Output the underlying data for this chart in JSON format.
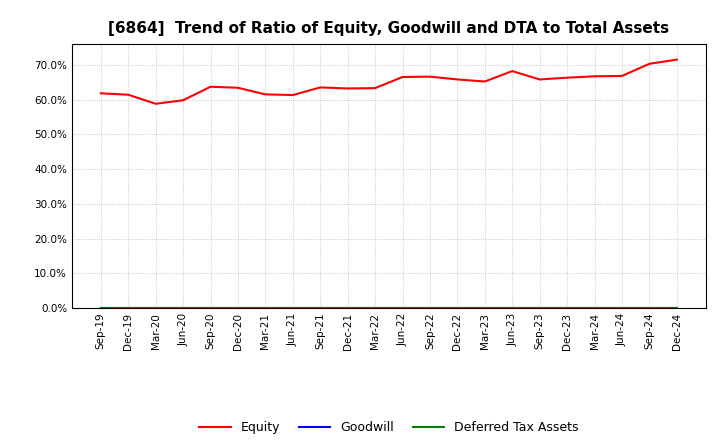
{
  "title": "[6864]  Trend of Ratio of Equity, Goodwill and DTA to Total Assets",
  "x_labels": [
    "Sep-19",
    "Dec-19",
    "Mar-20",
    "Jun-20",
    "Sep-20",
    "Dec-20",
    "Mar-21",
    "Jun-21",
    "Sep-21",
    "Dec-21",
    "Mar-22",
    "Jun-22",
    "Sep-22",
    "Dec-22",
    "Mar-23",
    "Jun-23",
    "Sep-23",
    "Dec-23",
    "Mar-24",
    "Jun-24",
    "Sep-24",
    "Dec-24"
  ],
  "equity": [
    0.618,
    0.614,
    0.588,
    0.598,
    0.637,
    0.634,
    0.615,
    0.613,
    0.635,
    0.632,
    0.633,
    0.665,
    0.666,
    0.658,
    0.652,
    0.682,
    0.658,
    0.663,
    0.667,
    0.668,
    0.703,
    0.715
  ],
  "goodwill": [
    0.0,
    0.0,
    0.0,
    0.0,
    0.0,
    0.0,
    0.0,
    0.0,
    0.0,
    0.0,
    0.0,
    0.0,
    0.0,
    0.0,
    0.0,
    0.0,
    0.0,
    0.0,
    0.0,
    0.0,
    0.0,
    0.0
  ],
  "dta": [
    0.0,
    0.0,
    0.0,
    0.0,
    0.0,
    0.0,
    0.0,
    0.0,
    0.0,
    0.0,
    0.0,
    0.0,
    0.0,
    0.0,
    0.0,
    0.0,
    0.0,
    0.0,
    0.0,
    0.0,
    0.0,
    0.0
  ],
  "equity_color": "#ff0000",
  "goodwill_color": "#0000ff",
  "dta_color": "#008000",
  "ylim": [
    0.0,
    0.76
  ],
  "yticks": [
    0.0,
    0.1,
    0.2,
    0.3,
    0.4,
    0.5,
    0.6,
    0.7
  ],
  "background_color": "#ffffff",
  "plot_bg_color": "#ffffff",
  "grid_color": "#bbbbbb",
  "title_fontsize": 11,
  "tick_fontsize": 7.5,
  "legend_labels": [
    "Equity",
    "Goodwill",
    "Deferred Tax Assets"
  ],
  "line_width": 1.5
}
